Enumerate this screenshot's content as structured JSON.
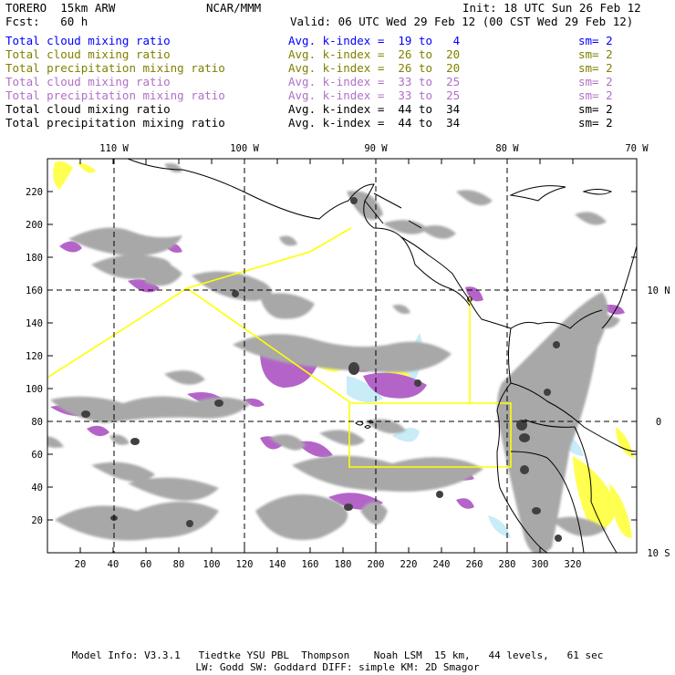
{
  "header": {
    "model": "TORERO  15km ARW",
    "org": "NCAR/MMM",
    "init": "Init: 18 UTC Sun 26 Feb 12",
    "fcst": "Fcst:   60 h",
    "valid": "Valid: 06 UTC Wed 29 Feb 12 (00 CST Wed 29 Feb 12)"
  },
  "legend": [
    {
      "field": "Total cloud mixing ratio",
      "kindex": "Avg. k-index =  19 to   4",
      "sm": "sm= 2",
      "color": "#0000ff"
    },
    {
      "field": "Total cloud mixing ratio",
      "kindex": "Avg. k-index =  26 to  20",
      "sm": "sm= 2",
      "color": "#808000"
    },
    {
      "field": "Total precipitation mixing ratio",
      "kindex": "Avg. k-index =  26 to  20",
      "sm": "sm= 2",
      "color": "#808000"
    },
    {
      "field": "Total cloud mixing ratio",
      "kindex": "Avg. k-index =  33 to  25",
      "sm": "sm= 2",
      "color": "#b070c8"
    },
    {
      "field": "Total precipitation mixing ratio",
      "kindex": "Avg. k-index =  33 to  25",
      "sm": "sm= 2",
      "color": "#b070c8"
    },
    {
      "field": "Total cloud mixing ratio",
      "kindex": "Avg. k-index =  44 to  34",
      "sm": "sm= 2",
      "color": "#000000"
    },
    {
      "field": "Total precipitation mixing ratio",
      "kindex": "Avg. k-index =  44 to  34",
      "sm": "sm= 2",
      "color": "#000000"
    }
  ],
  "map": {
    "lon_labels": [
      "110 W",
      "100 W",
      "90 W",
      "80 W",
      "70 W"
    ],
    "lat_labels": [
      "10 N",
      "0",
      "10 S"
    ],
    "x_ticks": [
      "20",
      "40",
      "60",
      "80",
      "100",
      "120",
      "140",
      "160",
      "180",
      "200",
      "220",
      "240",
      "260",
      "280",
      "300",
      "320"
    ],
    "y_ticks": [
      "220",
      "200",
      "180",
      "160",
      "140",
      "120",
      "100",
      "80",
      "60",
      "40",
      "20"
    ],
    "colors": {
      "cloud_gray": "#a8a8a8",
      "dark_core": "#404040",
      "purple": "#b464c8",
      "yellow": "#ffff50",
      "light_blue": "#c8ecf8",
      "domain_line": "#ffff00"
    }
  },
  "footer": {
    "line1": "Model Info: V3.3.1   Tiedtke YSU PBL  Thompson    Noah LSM  15 km,   44 levels,   61 sec",
    "line2": "LW: Godd SW: Goddard DIFF: simple KM: 2D Smagor"
  }
}
